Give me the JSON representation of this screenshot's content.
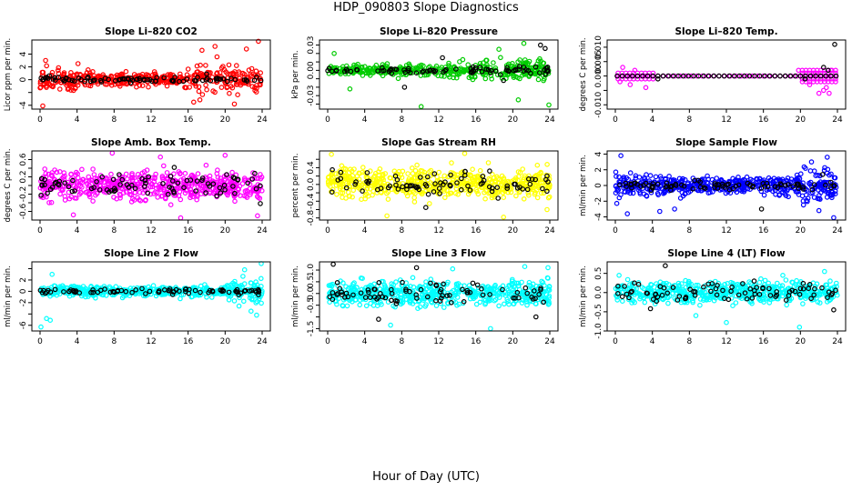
{
  "page": {
    "title": "HDP_090803  Slope Diagnostics",
    "x_axis_label": "Hour of Day (UTC)"
  },
  "chart_data": [
    {
      "type": "scatter",
      "title": "Slope Li–820 CO2",
      "ylabel": "Licor ppm per min.",
      "xlim": [
        0,
        24
      ],
      "xticks": [
        0,
        4,
        8,
        12,
        16,
        20,
        24
      ],
      "ylim": [
        -4.6,
        6.2
      ],
      "yticks": [
        -4,
        -2,
        0,
        2,
        4
      ],
      "ytick_labels": [
        "-4",
        "",
        "0",
        "2",
        "4"
      ],
      "colors": [
        "#ff0000",
        "#000000"
      ],
      "series": [
        {
          "profile": [
            [
              0,
              3.2
            ],
            [
              8,
              1.6
            ],
            [
              15,
              1.6
            ],
            [
              17,
              4.8
            ],
            [
              24,
              3.6
            ]
          ],
          "count": 430,
          "color": "#ff0000",
          "points": [
            [
              0.3,
              -4.1
            ],
            [
              0.6,
              3.0
            ],
            [
              3.0,
              -1.5
            ],
            [
              4.1,
              2.5
            ],
            [
              17.5,
              4.6
            ],
            [
              18.9,
              5.2
            ],
            [
              21.0,
              -3.8
            ],
            [
              22.3,
              4.8
            ],
            [
              23.6,
              6.0
            ],
            [
              16.6,
              -3.5
            ]
          ]
        },
        {
          "profile": [
            [
              0,
              0.6
            ],
            [
              24,
              0.7
            ]
          ],
          "count": 80,
          "color": "#000000",
          "points": [
            [
              1.0,
              0.6
            ],
            [
              5.2,
              0.4
            ],
            [
              9.8,
              -0.5
            ],
            [
              13.4,
              0.3
            ],
            [
              18.0,
              0.9
            ],
            [
              23.4,
              0.4
            ]
          ]
        }
      ]
    },
    {
      "type": "scatter",
      "title": "Slope Li–820 Pressure",
      "ylabel": "kPa per min.",
      "xlim": [
        0,
        24
      ],
      "xticks": [
        0,
        4,
        8,
        12,
        16,
        20,
        24
      ],
      "ylim": [
        -0.046,
        0.036
      ],
      "yticks": [
        -0.04,
        -0.03,
        -0.02,
        -0.01,
        0,
        0.01,
        0.02,
        0.03
      ],
      "ytick_labels": [
        "",
        "-0.03",
        "",
        "",
        "0.00",
        "",
        "",
        "0.03"
      ],
      "colors": [
        "#00cc00",
        "#000000"
      ],
      "series": [
        {
          "profile": [
            [
              0,
              0.006
            ],
            [
              4,
              0.01
            ],
            [
              16,
              0.016
            ],
            [
              24,
              0.02
            ]
          ],
          "count": 430,
          "color": "#00cc00",
          "points": [
            [
              0.7,
              0.02
            ],
            [
              2.4,
              -0.022
            ],
            [
              10.1,
              -0.043
            ],
            [
              21.2,
              0.032
            ],
            [
              23.9,
              -0.041
            ],
            [
              18.5,
              0.025
            ],
            [
              20.6,
              -0.035
            ]
          ]
        },
        {
          "profile": [
            [
              0,
              0.004
            ],
            [
              24,
              0.01
            ]
          ],
          "count": 80,
          "color": "#000000",
          "points": [
            [
              23.0,
              0.03
            ],
            [
              23.5,
              0.026
            ],
            [
              8.3,
              -0.02
            ],
            [
              12.4,
              0.015
            ],
            [
              19.0,
              -0.012
            ]
          ]
        }
      ]
    },
    {
      "type": "scatter",
      "title": "Slope Li–820 Temp.",
      "ylabel": "degrees C per min.",
      "xlim": [
        0,
        24
      ],
      "xticks": [
        0,
        4,
        8,
        12,
        16,
        20,
        24
      ],
      "ylim": [
        -0.0115,
        0.0125
      ],
      "yticks": [
        -0.01,
        -0.005,
        0,
        0.005,
        0.01
      ],
      "ytick_labels": [
        "-0.010",
        "",
        "0.000",
        "0.005",
        "0.010"
      ],
      "colors": [
        "#ff00ff",
        "#000000"
      ],
      "series": [
        {
          "band": true,
          "values": [
            -0.001,
            0.0,
            0.001
          ],
          "range": [
            0.3,
            4.2
          ],
          "step": 0.42,
          "color": "#ff00ff"
        },
        {
          "band": true,
          "values": [
            0.0
          ],
          "range": [
            4.6,
            19.8
          ],
          "step": 0.6,
          "color": "#ff00ff"
        },
        {
          "band": true,
          "values": [
            -0.002,
            -0.001,
            0.0,
            0.001,
            0.002
          ],
          "range": [
            20.2,
            24.0
          ],
          "step": 0.4,
          "color": "#ff00ff"
        },
        {
          "profile": [],
          "count": 0,
          "color": "#ff00ff",
          "points": [
            [
              0.8,
              0.003
            ],
            [
              1.6,
              -0.003
            ],
            [
              2.1,
              0.002
            ],
            [
              3.3,
              -0.004
            ],
            [
              0.5,
              -0.002
            ],
            [
              21.0,
              -0.003
            ],
            [
              22.0,
              -0.006
            ],
            [
              22.5,
              -0.005
            ],
            [
              23.1,
              -0.006
            ],
            [
              23.3,
              0.002
            ],
            [
              21.6,
              0.001
            ],
            [
              22.8,
              -0.004
            ],
            [
              19.8,
              0.002
            ]
          ]
        },
        {
          "band": true,
          "values": [
            0.0
          ],
          "range": [
            0.2,
            24.0
          ],
          "step": 0.55,
          "color": "#000000"
        },
        {
          "profile": [],
          "count": 0,
          "color": "#000000",
          "points": [
            [
              4.6,
              -0.001
            ],
            [
              23.0,
              0.002
            ],
            [
              22.5,
              0.003
            ],
            [
              23.7,
              0.011
            ],
            [
              20.5,
              -0.001
            ]
          ]
        }
      ]
    },
    {
      "type": "scatter",
      "title": "Slope Amb. Box Temp.",
      "ylabel": "degrees C per min.",
      "xlim": [
        0,
        24
      ],
      "xticks": [
        0,
        4,
        8,
        12,
        16,
        20,
        24
      ],
      "ylim": [
        -0.8,
        0.8
      ],
      "yticks": [
        -0.6,
        -0.4,
        -0.2,
        0,
        0.2,
        0.4,
        0.6
      ],
      "ytick_labels": [
        "-0.6",
        "",
        "-0.2",
        "",
        "0.2",
        "",
        "0.6"
      ],
      "colors": [
        "#ff00ff",
        "#000000"
      ],
      "series": [
        {
          "profile": [
            [
              0,
              0.55
            ],
            [
              24,
              0.55
            ]
          ],
          "count": 560,
          "color": "#ff00ff",
          "points": [
            [
              7.8,
              0.75
            ],
            [
              15.2,
              -0.75
            ],
            [
              20.0,
              0.7
            ],
            [
              13.0,
              0.66
            ],
            [
              23.5,
              -0.7
            ],
            [
              3.6,
              -0.68
            ]
          ]
        },
        {
          "profile": [
            [
              0,
              0.45
            ],
            [
              24,
              0.45
            ]
          ],
          "count": 80,
          "color": "#000000",
          "points": [
            [
              2.1,
              0.1
            ],
            [
              14.5,
              0.42
            ],
            [
              23.2,
              0.28
            ],
            [
              23.8,
              -0.42
            ]
          ]
        }
      ]
    },
    {
      "type": "scatter",
      "title": "Slope Gas Stream RH",
      "ylabel": "percent per min.",
      "xlim": [
        0,
        24
      ],
      "xticks": [
        0,
        4,
        8,
        12,
        16,
        20,
        24
      ],
      "ylim": [
        -0.85,
        0.8
      ],
      "yticks": [
        -0.8,
        -0.6,
        -0.4,
        -0.2,
        0,
        0.2,
        0.4,
        0.6
      ],
      "ytick_labels": [
        "-0.8",
        "",
        "-0.4",
        "",
        "0.0",
        "",
        "0.4",
        ""
      ],
      "colors": [
        "#ffff00",
        "#000000"
      ],
      "series": [
        {
          "profile": [
            [
              0,
              0.6
            ],
            [
              24,
              0.6
            ]
          ],
          "count": 560,
          "color": "#ffff00",
          "points": [
            [
              0.4,
              0.72
            ],
            [
              6.4,
              -0.75
            ],
            [
              14.8,
              0.74
            ],
            [
              19.0,
              -0.78
            ],
            [
              23.7,
              -0.6
            ]
          ]
        },
        {
          "profile": [
            [
              0,
              0.45
            ],
            [
              24,
              0.45
            ]
          ],
          "count": 80,
          "color": "#000000",
          "points": [
            [
              0.5,
              0.35
            ],
            [
              10.6,
              -0.55
            ],
            [
              17.5,
              0.32
            ],
            [
              23.2,
              -0.1
            ]
          ]
        }
      ]
    },
    {
      "type": "scatter",
      "title": "Slope Sample Flow",
      "ylabel": "ml/min per min.",
      "xlim": [
        0,
        24
      ],
      "xticks": [
        0,
        4,
        8,
        12,
        16,
        20,
        24
      ],
      "ylim": [
        -4.4,
        4.4
      ],
      "yticks": [
        -4,
        -2,
        0,
        2,
        4
      ],
      "ytick_labels": [
        "-4",
        "-2",
        "0",
        "2",
        "4"
      ],
      "colors": [
        "#0000ff",
        "#000000"
      ],
      "series": [
        {
          "profile": [
            [
              0,
              3.0
            ],
            [
              4,
              2.0
            ],
            [
              12,
              1.6
            ],
            [
              18,
              2.0
            ],
            [
              20,
              3.2
            ],
            [
              24,
              3.6
            ]
          ],
          "count": 520,
          "color": "#0000ff",
          "points": [
            [
              0.6,
              3.8
            ],
            [
              1.3,
              -3.6
            ],
            [
              4.8,
              -3.3
            ],
            [
              6.4,
              -3.0
            ],
            [
              21.2,
              3.0
            ],
            [
              22.9,
              3.6
            ],
            [
              23.6,
              -4.1
            ],
            [
              22.0,
              -3.2
            ]
          ]
        },
        {
          "profile": [
            [
              0,
              0.9
            ],
            [
              24,
              0.9
            ]
          ],
          "count": 80,
          "color": "#000000",
          "points": [
            [
              15.8,
              -3.0
            ],
            [
              23.3,
              0.4
            ],
            [
              22.4,
              1.4
            ]
          ]
        }
      ]
    },
    {
      "type": "scatter",
      "title": "Slope Line 2 Flow",
      "ylabel": "ml/min per min.",
      "xlim": [
        0,
        24
      ],
      "xticks": [
        0,
        4,
        8,
        12,
        16,
        20,
        24
      ],
      "ylim": [
        -7.0,
        5.2
      ],
      "yticks": [
        -6,
        -4,
        -2,
        0,
        2,
        4
      ],
      "ytick_labels": [
        "-6",
        "",
        "-2",
        "0",
        "2",
        ""
      ],
      "colors": [
        "#00ffff",
        "#000000"
      ],
      "series": [
        {
          "profile": [
            [
              0,
              1.5
            ],
            [
              20,
              1.6
            ],
            [
              21,
              3.2
            ],
            [
              24,
              4.5
            ]
          ],
          "count": 500,
          "color": "#00ffff",
          "points": [
            [
              0.1,
              -6.3
            ],
            [
              0.7,
              -4.8
            ],
            [
              1.1,
              -5.1
            ],
            [
              1.3,
              3.0
            ],
            [
              23.9,
              4.9
            ],
            [
              22.8,
              -3.5
            ],
            [
              23.4,
              -4.2
            ],
            [
              22.1,
              3.8
            ],
            [
              21.5,
              -2.6
            ]
          ]
        },
        {
          "profile": [
            [
              0,
              0.7
            ],
            [
              24,
              0.7
            ]
          ],
          "count": 80,
          "color": "#000000",
          "points": [
            [
              23.6,
              -0.6
            ]
          ]
        }
      ]
    },
    {
      "type": "scatter",
      "title": "Slope Line 3 Flow",
      "ylabel": "ml/min per min.",
      "xlim": [
        0,
        24
      ],
      "xticks": [
        0,
        4,
        8,
        12,
        16,
        20,
        24
      ],
      "ylim": [
        -1.6,
        1.35
      ],
      "yticks": [
        -1.5,
        -1,
        -0.5,
        0,
        0.5,
        1
      ],
      "ytick_labels": [
        "-1.5",
        "",
        "-0.5",
        "0.0",
        "0.5",
        "1.0"
      ],
      "colors": [
        "#00ffff",
        "#000000"
      ],
      "series": [
        {
          "profile": [
            [
              0,
              0.9
            ],
            [
              24,
              0.9
            ]
          ],
          "count": 540,
          "color": "#00ffff",
          "points": [
            [
              17.6,
              -1.5
            ],
            [
              21.3,
              1.15
            ],
            [
              23.8,
              1.1
            ],
            [
              6.8,
              -1.35
            ],
            [
              13.5,
              1.05
            ]
          ]
        },
        {
          "profile": [
            [
              0,
              0.8
            ],
            [
              24,
              0.8
            ]
          ],
          "count": 80,
          "color": "#000000",
          "points": [
            [
              0.6,
              1.25
            ],
            [
              22.5,
              -1.0
            ],
            [
              5.5,
              -1.1
            ],
            [
              9.6,
              1.1
            ]
          ]
        }
      ]
    },
    {
      "type": "scatter",
      "title": "Slope Line 4 (LT) Flow",
      "ylabel": "ml/min per min.",
      "xlim": [
        0,
        24
      ],
      "xticks": [
        0,
        4,
        8,
        12,
        16,
        20,
        24
      ],
      "ylim": [
        -1.0,
        0.8
      ],
      "yticks": [
        -1,
        -0.5,
        0,
        0.5
      ],
      "ytick_labels": [
        "-1.0",
        "-0.5",
        "0.0",
        "0.5"
      ],
      "colors": [
        "#00ffff",
        "#000000"
      ],
      "series": [
        {
          "profile": [
            [
              0,
              0.5
            ],
            [
              24,
              0.5
            ]
          ],
          "count": 540,
          "color": "#00ffff",
          "points": [
            [
              12.0,
              -0.78
            ],
            [
              19.9,
              -0.9
            ],
            [
              0.4,
              0.45
            ],
            [
              22.6,
              0.55
            ],
            [
              18.1,
              0.45
            ],
            [
              8.7,
              -0.6
            ]
          ]
        },
        {
          "profile": [
            [
              0,
              0.4
            ],
            [
              24,
              0.4
            ]
          ],
          "count": 80,
          "color": "#000000",
          "points": [
            [
              5.4,
              0.7
            ],
            [
              23.6,
              -0.45
            ],
            [
              3.8,
              -0.42
            ],
            [
              15.0,
              0.3
            ]
          ]
        }
      ]
    }
  ]
}
